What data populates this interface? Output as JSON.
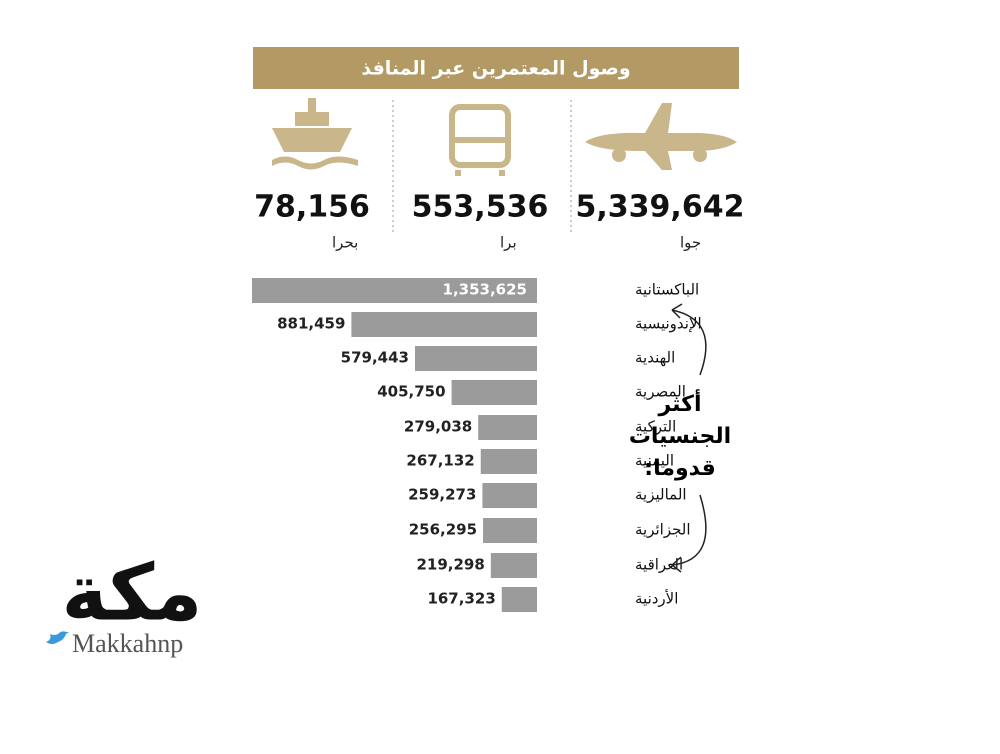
{
  "title": "وصول المعتمرين عبر المنافذ",
  "modes": [
    {
      "label": "جوا",
      "value": "5,339,642"
    },
    {
      "label": "برا",
      "value": "553,536"
    },
    {
      "label": "بحرا",
      "value": "78,156"
    }
  ],
  "chart_data": {
    "type": "bar",
    "orientation": "horizontal",
    "color": "#9b9b9b",
    "categories": [
      "الباكستانية",
      "الإندونيسية",
      "الهندية",
      "المصرية",
      "التركية",
      "اليمنية",
      "الماليزية",
      "الجزائرية",
      "العراقية",
      "الأردنية"
    ],
    "values": [
      1353625,
      881459,
      579443,
      405750,
      279038,
      267132,
      259273,
      256295,
      219298,
      167323
    ],
    "value_labels": [
      "1,353,625",
      "881,459",
      "579,443",
      "405,750",
      "279,038",
      "267,132",
      "259,273",
      "256,295",
      "219,298",
      "167,323"
    ],
    "annotation": "أكثر الجنسيات قدوما:"
  },
  "logo": {
    "name": "مكة",
    "handle": "Makkahnp"
  }
}
